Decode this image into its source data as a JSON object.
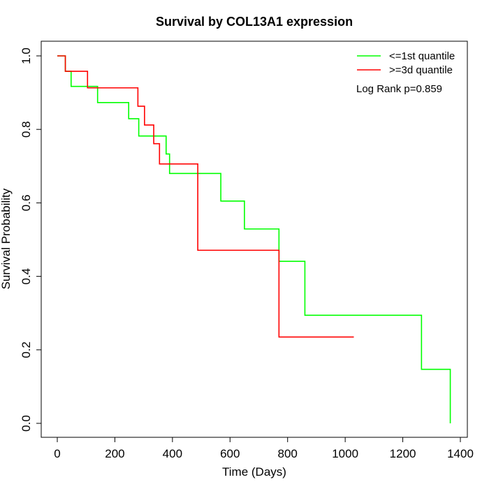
{
  "chart_data": {
    "type": "line",
    "title": "Survival by COL13A1 expression",
    "xlabel": "Time (Days)",
    "ylabel": "Survival Probability",
    "xlim": [
      0,
      1400
    ],
    "ylim": [
      0,
      1.0
    ],
    "x_ticks": [
      0,
      200,
      400,
      600,
      800,
      1000,
      1200,
      1400
    ],
    "y_ticks": [
      0.0,
      0.2,
      0.4,
      0.6,
      0.8,
      1.0
    ],
    "x_tick_labels": [
      "0",
      "200",
      "400",
      "600",
      "800",
      "1000",
      "1200",
      "1400"
    ],
    "y_tick_labels": [
      "0.0",
      "0.2",
      "0.4",
      "0.6",
      "0.8",
      "1.0"
    ],
    "legend_position": "top-right",
    "annotation": "Log Rank p=0.859",
    "series": [
      {
        "name": "<=1st quantile",
        "color": "#00ff00",
        "step": true,
        "x": [
          0,
          28,
          48,
          140,
          248,
          283,
          378,
          390,
          568,
          650,
          770,
          860,
          1265,
          1365
        ],
        "y": [
          1.0,
          0.958,
          0.917,
          0.873,
          0.829,
          0.782,
          0.733,
          0.68,
          0.605,
          0.529,
          0.441,
          0.294,
          0.147,
          0.0
        ]
      },
      {
        "name": ">=3d quantile",
        "color": "#ff0000",
        "step": true,
        "x": [
          0,
          28,
          105,
          280,
          303,
          335,
          355,
          488,
          770,
          1030
        ],
        "y": [
          1.0,
          0.958,
          0.913,
          0.863,
          0.812,
          0.761,
          0.706,
          0.471,
          0.235,
          0.235
        ]
      }
    ]
  }
}
